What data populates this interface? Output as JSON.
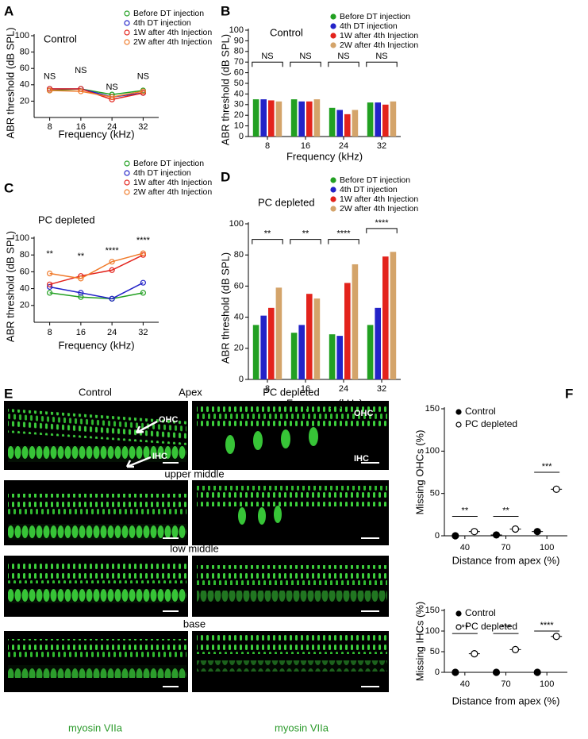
{
  "chart_data": [
    {
      "panel": "A",
      "type": "line",
      "title": "Control",
      "xlabel": "Frequency (kHz)",
      "ylabel": "ABR threshold (dB SPL)",
      "x": [
        8,
        16,
        24,
        32
      ],
      "xlim": [
        4,
        36
      ],
      "xticks": [
        8,
        16,
        24,
        32
      ],
      "ylim": [
        0,
        100
      ],
      "yticks": [
        20,
        40,
        60,
        80,
        100
      ],
      "series": [
        {
          "name": "Before DT injection",
          "color": "#22a022",
          "values": [
            33,
            35,
            28,
            33
          ]
        },
        {
          "name": "4th DT injection",
          "color": "#2323c8",
          "values": [
            35,
            35,
            25,
            30
          ]
        },
        {
          "name": "1W after 4th Injection",
          "color": "#e3231c",
          "values": [
            35,
            35,
            22,
            30
          ]
        },
        {
          "name": "2W after 4th Injection",
          "color": "#f07a2a",
          "values": [
            33,
            32,
            25,
            32
          ]
        }
      ],
      "annotations": [
        {
          "x": 8,
          "y": 50,
          "text": "NS"
        },
        {
          "x": 16,
          "y": 57,
          "text": "NS"
        },
        {
          "x": 24,
          "y": 37,
          "text": "NS"
        },
        {
          "x": 32,
          "y": 50,
          "text": "NS"
        }
      ]
    },
    {
      "panel": "B",
      "type": "bar",
      "title": "Control",
      "xlabel": "Frequency (kHz)",
      "ylabel": "ABR threshold (dB SPL)",
      "categories": [
        "8",
        "16",
        "24",
        "32"
      ],
      "ylim": [
        0,
        100
      ],
      "yticks": [
        0,
        10,
        20,
        30,
        40,
        50,
        60,
        70,
        80,
        90,
        100
      ],
      "series": [
        {
          "name": "Before DT injection",
          "color": "#22a022",
          "values": [
            35,
            35,
            27,
            32
          ]
        },
        {
          "name": "4th DT injection",
          "color": "#2323c8",
          "values": [
            35,
            33,
            25,
            32
          ]
        },
        {
          "name": "1W after 4th Injection",
          "color": "#e3231c",
          "values": [
            34,
            33,
            21,
            30
          ]
        },
        {
          "name": "2W after 4th Injection",
          "color": "#d4a46a",
          "values": [
            33,
            35,
            25,
            33
          ]
        }
      ],
      "annotations": [
        {
          "x": "8",
          "y": 70,
          "text": "NS"
        },
        {
          "x": "16",
          "y": 70,
          "text": "NS"
        },
        {
          "x": "24",
          "y": 70,
          "text": "NS"
        },
        {
          "x": "32",
          "y": 70,
          "text": "NS"
        }
      ]
    },
    {
      "panel": "C",
      "type": "line",
      "title": "PC depleted",
      "xlabel": "Frequency (kHz)",
      "ylabel": "ABR threshold (dB SPL)",
      "x": [
        8,
        16,
        24,
        32
      ],
      "xlim": [
        4,
        36
      ],
      "xticks": [
        8,
        16,
        24,
        32
      ],
      "ylim": [
        0,
        100
      ],
      "yticks": [
        20,
        40,
        60,
        80,
        100
      ],
      "series": [
        {
          "name": "Before DT injection",
          "color": "#22a022",
          "values": [
            35,
            30,
            28,
            35
          ]
        },
        {
          "name": "4th DT injection",
          "color": "#2323c8",
          "values": [
            42,
            35,
            28,
            47
          ]
        },
        {
          "name": "1W after 4th Injection",
          "color": "#e3231c",
          "values": [
            45,
            55,
            62,
            80
          ]
        },
        {
          "name": "2W after 4th Injection",
          "color": "#f07a2a",
          "values": [
            58,
            52,
            72,
            82
          ]
        }
      ],
      "annotations": [
        {
          "x": 8,
          "y": 81,
          "text": "**"
        },
        {
          "x": 16,
          "y": 78,
          "text": "**"
        },
        {
          "x": 24,
          "y": 85,
          "text": "****"
        },
        {
          "x": 32,
          "y": 97,
          "text": "****"
        }
      ]
    },
    {
      "panel": "D",
      "type": "bar",
      "title": "PC depleted",
      "xlabel": "Frequency (kHz)",
      "ylabel": "ABR threshold (dB SPL)",
      "categories": [
        "8",
        "16",
        "24",
        "32"
      ],
      "ylim": [
        0,
        100
      ],
      "yticks": [
        0,
        20,
        40,
        60,
        80,
        100
      ],
      "series": [
        {
          "name": "Before DT injection",
          "color": "#22a022",
          "values": [
            35,
            30,
            29,
            35
          ]
        },
        {
          "name": "4th DT injection",
          "color": "#2323c8",
          "values": [
            41,
            35,
            28,
            46
          ]
        },
        {
          "name": "1W after 4th Injection",
          "color": "#e3231c",
          "values": [
            46,
            55,
            62,
            79
          ]
        },
        {
          "name": "2W after 4th Injection",
          "color": "#d4a46a",
          "values": [
            59,
            52,
            74,
            82
          ]
        }
      ],
      "annotations": [
        {
          "x": "8",
          "y": 90,
          "text": "**"
        },
        {
          "x": "16",
          "y": 90,
          "text": "**"
        },
        {
          "x": "24",
          "y": 90,
          "text": "****"
        },
        {
          "x": "32",
          "y": 97,
          "text": "****"
        }
      ]
    },
    {
      "panel": "F",
      "type": "dot",
      "xlabel": "Distance from apex (%)",
      "ylabel": "Missing OHCs (%)",
      "categories": [
        "40",
        "70",
        "100"
      ],
      "ylim": [
        0,
        150
      ],
      "yticks": [
        0,
        50,
        100,
        150
      ],
      "series": [
        {
          "name": "Control",
          "marker": "filled",
          "values": [
            0,
            1,
            5
          ]
        },
        {
          "name": "PC depleted",
          "marker": "open",
          "values": [
            5,
            8,
            55
          ]
        }
      ],
      "annotations": [
        {
          "x": "40",
          "y": 23,
          "text": "**"
        },
        {
          "x": "70",
          "y": 23,
          "text": "**"
        },
        {
          "x": "100",
          "y": 75,
          "text": "***"
        }
      ]
    },
    {
      "type": "dot",
      "xlabel": "Distance from apex (%)",
      "ylabel": "Missing IHCs (%)",
      "categories": [
        "40",
        "70",
        "100"
      ],
      "ylim": [
        0,
        150
      ],
      "yticks": [
        0,
        50,
        100,
        150
      ],
      "series": [
        {
          "name": "Control",
          "marker": "filled",
          "values": [
            0,
            0,
            0
          ]
        },
        {
          "name": "PC depleted",
          "marker": "open",
          "values": [
            45,
            55,
            87
          ]
        }
      ],
      "annotations": [
        {
          "x": "40",
          "y": 94,
          "text": "**"
        },
        {
          "x": "70",
          "y": 94,
          "text": "***"
        },
        {
          "x": "100",
          "y": 100,
          "text": "****"
        }
      ]
    }
  ],
  "panel_e": {
    "panel": "E",
    "control": "Control",
    "apex": "Apex",
    "pc_depleted": "PC depleted",
    "ohc": "OHC",
    "ihc": "IHC",
    "upper_middle": "upper middle",
    "low_middle": "low middle",
    "base": "base",
    "stain": "myosin VIIa"
  }
}
